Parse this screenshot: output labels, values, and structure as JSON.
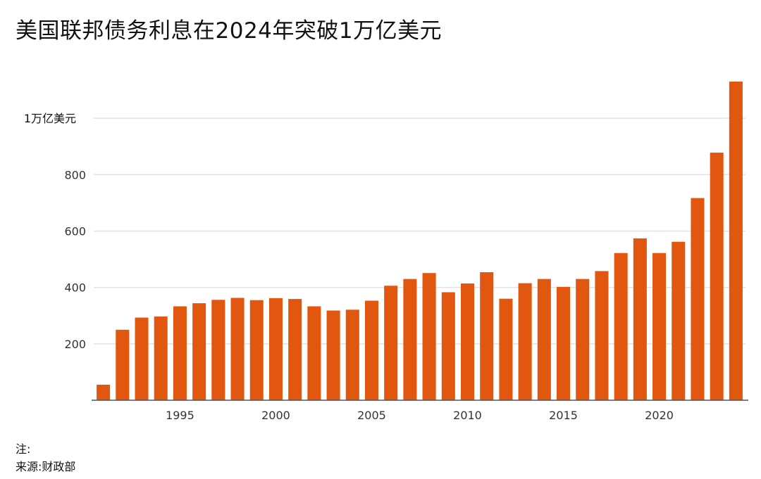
{
  "title": "美国联邦债务利息在2024年突破1万亿美元",
  "note_label": "注:",
  "source_label": "来源:财政部",
  "chart_data": {
    "type": "bar",
    "title": "美国联邦债务利息在2024年突破1万亿美元",
    "xlabel": "",
    "ylabel": "",
    "categories": [
      1991,
      1992,
      1993,
      1994,
      1995,
      1996,
      1997,
      1998,
      1999,
      2000,
      2001,
      2002,
      2003,
      2004,
      2005,
      2006,
      2007,
      2008,
      2009,
      2010,
      2011,
      2012,
      2013,
      2014,
      2015,
      2016,
      2017,
      2018,
      2019,
      2020,
      2021,
      2022,
      2023,
      2024
    ],
    "values": [
      55,
      250,
      293,
      297,
      333,
      344,
      356,
      363,
      355,
      362,
      359,
      333,
      318,
      321,
      353,
      406,
      430,
      451,
      383,
      414,
      454,
      360,
      415,
      430,
      402,
      430,
      458,
      522,
      574,
      522,
      562,
      717,
      878,
      1130
    ],
    "ylim": [
      0,
      1130
    ],
    "yticks": [
      200,
      400,
      600,
      800,
      1000
    ],
    "ytick_labels": [
      "200",
      "400",
      "600",
      "800",
      "1万亿美元"
    ],
    "xticks": [
      1995,
      2000,
      2005,
      2010,
      2015,
      2020
    ],
    "xtick_labels": [
      "1995",
      "2000",
      "2005",
      "2010",
      "2015",
      "2020"
    ],
    "grid": true,
    "bar_color": "#e2570f",
    "legend": "none"
  }
}
